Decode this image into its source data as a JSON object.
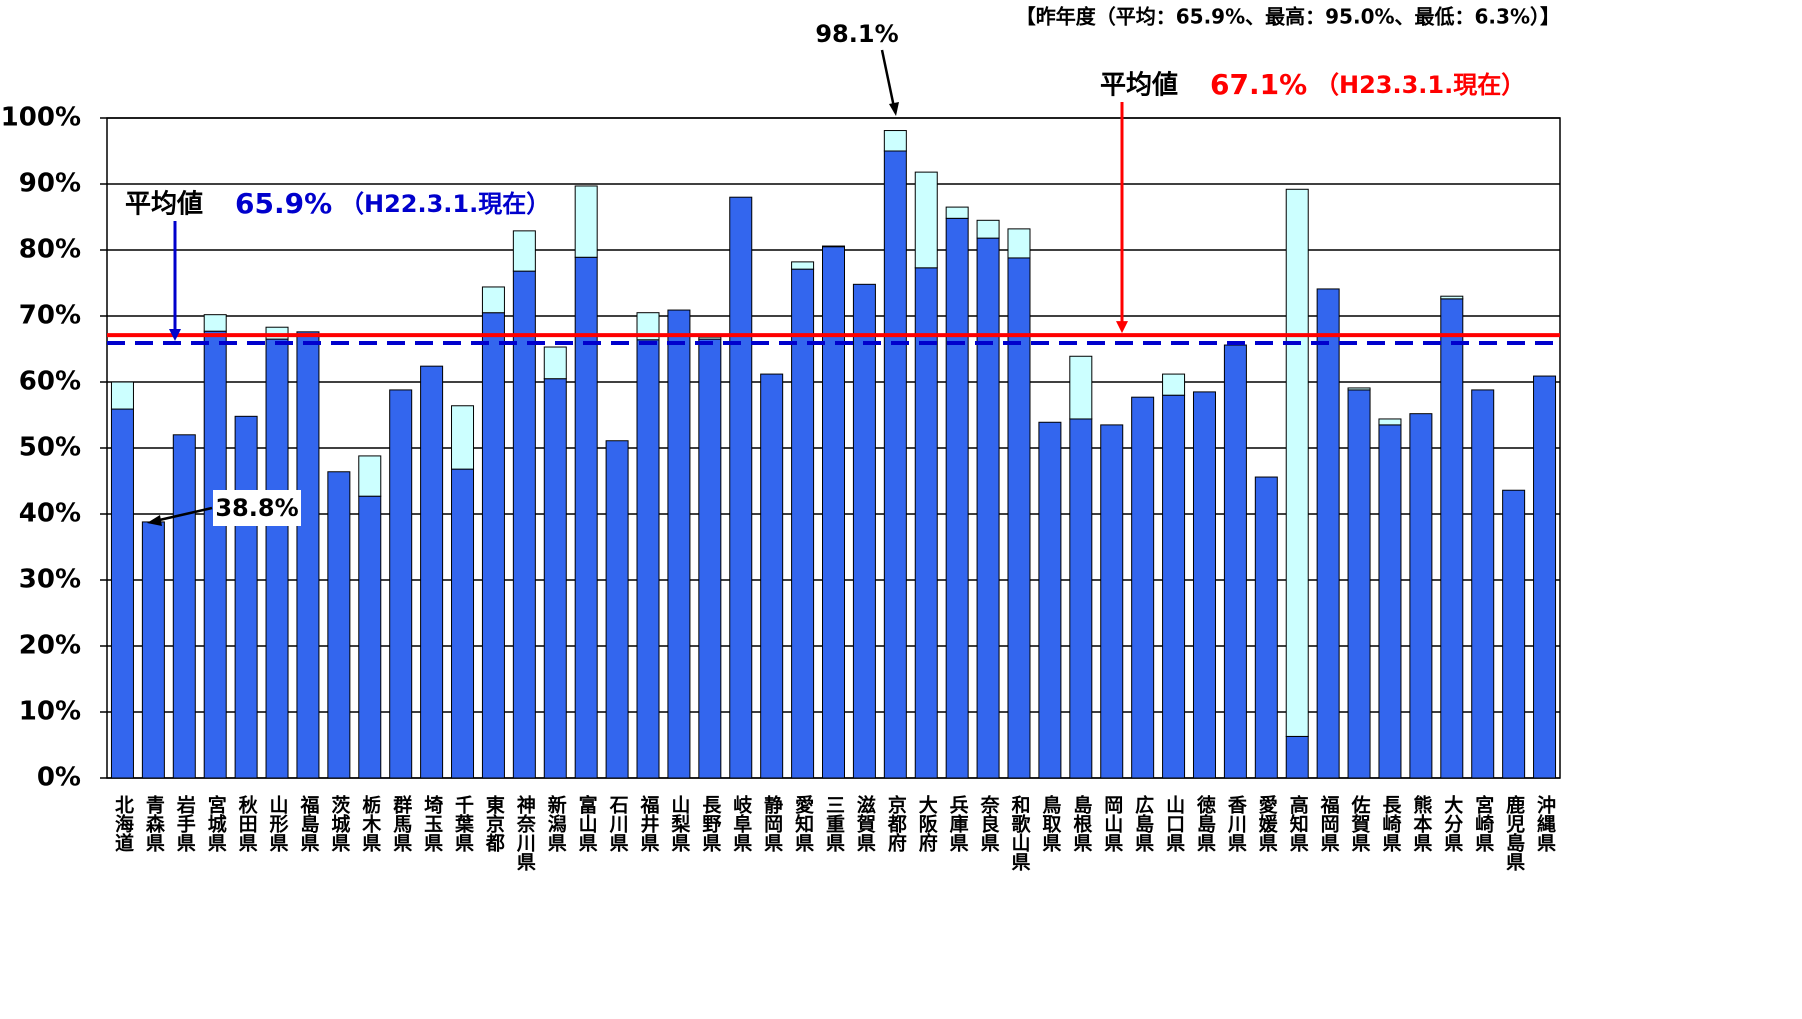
{
  "chart_data": {
    "type": "stacked_bar",
    "note": "【昨年度（平均：65.9%、最高：95.0%、最低：6.3%）】",
    "categories": [
      "北海道",
      "青森県",
      "岩手県",
      "宮城県",
      "秋田県",
      "山形県",
      "福島県",
      "茨城県",
      "栃木県",
      "群馬県",
      "埼玉県",
      "千葉県",
      "東京都",
      "神奈川県",
      "新潟県",
      "富山県",
      "石川県",
      "福井県",
      "山梨県",
      "長野県",
      "岐阜県",
      "静岡県",
      "愛知県",
      "三重県",
      "滋賀県",
      "京都府",
      "大阪府",
      "兵庫県",
      "奈良県",
      "和歌山県",
      "鳥取県",
      "島根県",
      "岡山県",
      "広島県",
      "山口県",
      "徳島県",
      "香川県",
      "愛媛県",
      "高知県",
      "福岡県",
      "佐賀県",
      "長崎県",
      "熊本県",
      "大分県",
      "宮崎県",
      "鹿児島県",
      "沖縄県"
    ],
    "series": [
      {
        "color": "#3366ee",
        "values": [
          55.9,
          38.8,
          52.0,
          67.7,
          54.8,
          66.5,
          67.6,
          46.4,
          42.7,
          58.8,
          62.4,
          46.8,
          70.5,
          76.8,
          60.5,
          78.9,
          51.1,
          66.4,
          70.9,
          66.5,
          88.0,
          61.2,
          77.1,
          80.5,
          74.8,
          95.0,
          77.3,
          84.8,
          81.8,
          78.8,
          53.9,
          54.4,
          53.5,
          57.7,
          58.0,
          58.5,
          65.6,
          45.6,
          6.3,
          74.1,
          58.8,
          53.5,
          55.2,
          72.6,
          58.8,
          43.6,
          60.9
        ]
      },
      {
        "color": "#ccffff",
        "values": [
          4.1,
          0,
          0,
          2.5,
          0,
          1.8,
          0,
          0,
          6.1,
          0,
          0,
          9.6,
          3.9,
          6.1,
          4.8,
          10.8,
          0,
          4.1,
          0,
          0.3,
          0,
          0,
          1.1,
          0.1,
          0,
          3.1,
          14.5,
          1.7,
          2.7,
          4.4,
          0,
          9.5,
          0,
          0,
          3.2,
          0,
          0,
          0,
          82.9,
          0,
          0.3,
          0.9,
          0,
          0.4,
          0,
          0,
          0
        ]
      }
    ],
    "ylim": [
      0,
      100
    ],
    "yticks": [
      {
        "value": 0,
        "label": "0%"
      },
      {
        "value": 10,
        "label": "10%"
      },
      {
        "value": 20,
        "label": "20%"
      },
      {
        "value": 30,
        "label": "30%"
      },
      {
        "value": 40,
        "label": "40%"
      },
      {
        "value": 50,
        "label": "50%"
      },
      {
        "value": 60,
        "label": "60%"
      },
      {
        "value": 70,
        "label": "70%"
      },
      {
        "value": 80,
        "label": "80%"
      },
      {
        "value": 90,
        "label": "90%"
      },
      {
        "value": 100,
        "label": "100%"
      }
    ],
    "grid": true,
    "reference_lines": [
      {
        "prefix": "平均値",
        "value": 67.1,
        "value_label": "67.1%",
        "suffix": "（H23.3.1.現在）",
        "color": "#ff0000",
        "style": "solid"
      },
      {
        "prefix": "平均値",
        "value": 65.9,
        "value_label": "65.9%",
        "suffix": "（H22.3.1.現在）",
        "color": "#0000cc",
        "style": "dashed"
      }
    ],
    "annotations": [
      {
        "text": "98.1%"
      },
      {
        "text": "38.8%"
      }
    ]
  }
}
